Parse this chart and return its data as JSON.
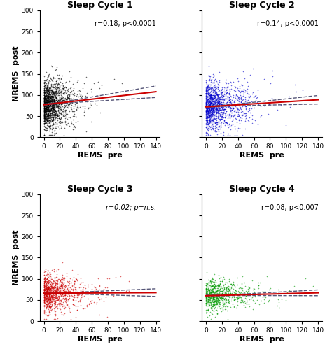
{
  "panels": [
    {
      "title": "Sleep Cycle 1",
      "annotation": "r=0.18; p<0.0001",
      "dot_color": "black",
      "n_points": 1800,
      "x_center": 8,
      "x_scale": 12,
      "y_intercept": 77,
      "slope": 0.22,
      "x_min": -5,
      "x_max": 140,
      "y_min": 0,
      "y_max": 300,
      "x_spread": 18,
      "y_spread": 28
    },
    {
      "title": "Sleep Cycle 2",
      "annotation": "r=0.14; p<0.0001",
      "dot_color": "#0000cc",
      "n_points": 1500,
      "x_center": 30,
      "x_scale": 18,
      "y_intercept": 72,
      "slope": 0.12,
      "x_min": -5,
      "x_max": 140,
      "y_min": 0,
      "y_max": 300,
      "x_spread": 22,
      "y_spread": 28
    },
    {
      "title": "Sleep Cycle 3",
      "annotation": "r=0.02; p=n.s.",
      "dot_color": "#cc0000",
      "n_points": 1200,
      "x_center": 22,
      "x_scale": 16,
      "y_intercept": 66,
      "slope": 0.01,
      "x_min": -5,
      "x_max": 140,
      "y_min": 0,
      "y_max": 300,
      "x_spread": 18,
      "y_spread": 22
    },
    {
      "title": "Sleep Cycle 4",
      "annotation": "r=0.08; p<0.007",
      "dot_color": "#009900",
      "n_points": 900,
      "x_center": 38,
      "x_scale": 20,
      "y_intercept": 60,
      "slope": 0.05,
      "x_min": -5,
      "x_max": 140,
      "y_min": 0,
      "y_max": 300,
      "x_spread": 22,
      "y_spread": 18
    }
  ],
  "reg_line_color": "#cc0000",
  "ci_line_color": "#555577",
  "xlabel": "REMS  pre",
  "ylabel": "NREMS  post",
  "xticks": [
    0,
    20,
    40,
    60,
    80,
    100,
    120,
    140
  ],
  "yticks": [
    0,
    50,
    100,
    150,
    200,
    250,
    300
  ]
}
